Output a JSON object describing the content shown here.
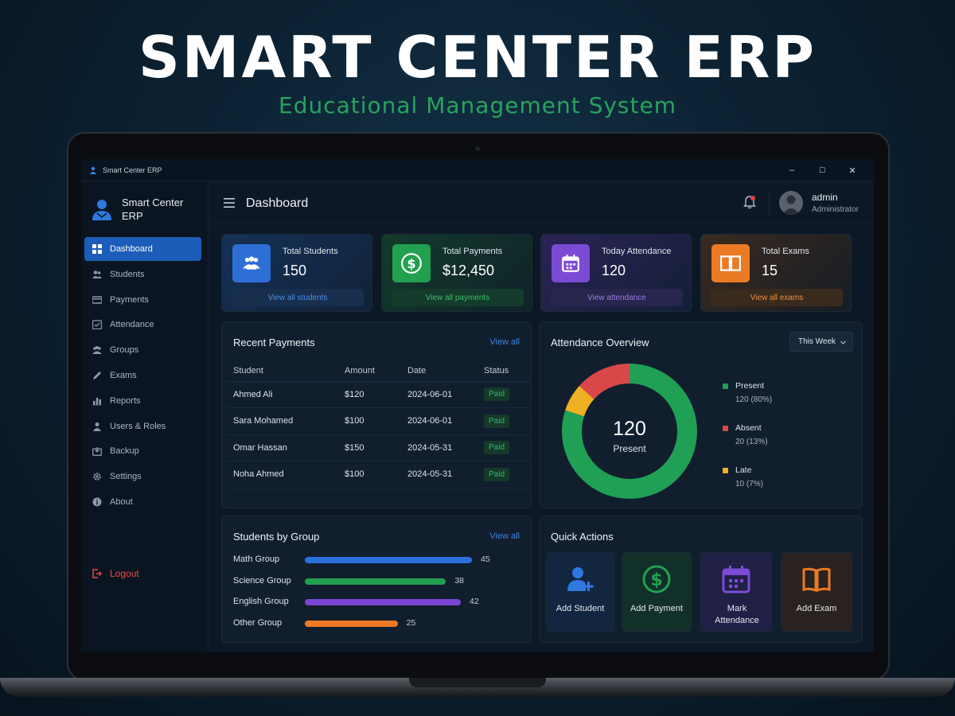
{
  "hero": {
    "title": "SMART CENTER ERP",
    "subtitle": "Educational Management System"
  },
  "window": {
    "title": "Smart Center ERP",
    "controls": [
      "–",
      "☐",
      "✕"
    ]
  },
  "sidebar": {
    "brand": "Smart Center ERP",
    "items": [
      {
        "label": "Dashboard",
        "icon": "dashboard-icon",
        "active": true
      },
      {
        "label": "Students",
        "icon": "students-icon"
      },
      {
        "label": "Payments",
        "icon": "payments-icon"
      },
      {
        "label": "Attendance",
        "icon": "attendance-icon"
      },
      {
        "label": "Groups",
        "icon": "groups-icon"
      },
      {
        "label": "Exams",
        "icon": "exams-icon"
      },
      {
        "label": "Reports",
        "icon": "reports-icon"
      },
      {
        "label": "Users & Roles",
        "icon": "users-roles-icon"
      },
      {
        "label": "Backup",
        "icon": "backup-icon"
      },
      {
        "label": "Settings",
        "icon": "settings-icon"
      },
      {
        "label": "About",
        "icon": "about-icon"
      }
    ],
    "logout": "Logout"
  },
  "header": {
    "title": "Dashboard",
    "user_name": "admin",
    "user_role": "Administrator"
  },
  "stats": [
    {
      "label": "Total Students",
      "value": "150",
      "link": "View all students",
      "color": "#2e6fd6"
    },
    {
      "label": "Total Payments",
      "value": "$12,450",
      "link": "View all payments",
      "color": "#23a04f"
    },
    {
      "label": "Today Attendance",
      "value": "120",
      "link": "View attendance",
      "color": "#7c4bd6"
    },
    {
      "label": "Total Exams",
      "value": "15",
      "link": "View all exams",
      "color": "#ea7a24"
    }
  ],
  "recent_payments": {
    "title": "Recent Payments",
    "link": "View all",
    "columns": [
      "Student",
      "Amount",
      "Date",
      "Status"
    ],
    "rows": [
      {
        "student": "Ahmed Ali",
        "amount": "$120",
        "date": "2024-06-01",
        "status": "Paid"
      },
      {
        "student": "Sara Mohamed",
        "amount": "$100",
        "date": "2024-06-01",
        "status": "Paid"
      },
      {
        "student": "Omar Hassan",
        "amount": "$150",
        "date": "2024-05-31",
        "status": "Paid"
      },
      {
        "student": "Noha Ahmed",
        "amount": "$100",
        "date": "2024-05-31",
        "status": "Paid"
      }
    ]
  },
  "attendance": {
    "title": "Attendance Overview",
    "filter": "This Week",
    "center_value": "120",
    "center_label": "Present",
    "segments": [
      {
        "name": "Present",
        "detail": "120 (80%)",
        "value": 120,
        "color": "#1fa055"
      },
      {
        "name": "Absent",
        "detail": "20 (13%)",
        "value": 20,
        "color": "#d94848"
      },
      {
        "name": "Late",
        "detail": "10 (7%)",
        "value": 10,
        "color": "#f0b023"
      }
    ]
  },
  "groups": {
    "title": "Students by Group",
    "link": "View all",
    "items": [
      {
        "name": "Math Group",
        "count": 45,
        "color": "#2b6fdc"
      },
      {
        "name": "Science Group",
        "count": 38,
        "color": "#23a04f"
      },
      {
        "name": "English Group",
        "count": 42,
        "color": "#7b45d4"
      },
      {
        "name": "Other Group",
        "count": 25,
        "color": "#ee7a25"
      }
    ]
  },
  "quick_actions": {
    "title": "Quick Actions",
    "items": [
      {
        "label": "Add Student",
        "icon": "add-user-icon",
        "color": "#2e78e0"
      },
      {
        "label": "Add Payment",
        "icon": "dollar-circle-icon",
        "color": "#23a04f"
      },
      {
        "label": "Mark Attendance",
        "icon": "calendar-icon",
        "color": "#7c4bd6"
      },
      {
        "label": "Add Exam",
        "icon": "book-icon",
        "color": "#ea7a24"
      }
    ]
  }
}
